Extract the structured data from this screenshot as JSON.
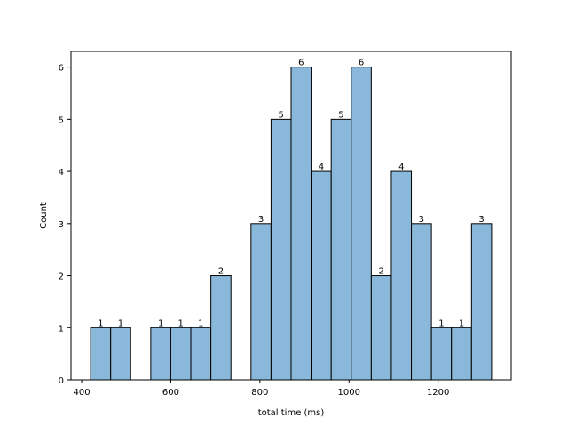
{
  "chart_data": {
    "type": "bar",
    "title": "",
    "xlabel": "total time (ms)",
    "ylabel": "Count",
    "bin_width": 45,
    "bin_edges": [
      420,
      465,
      510,
      555,
      600,
      645,
      690,
      735,
      780,
      825,
      870,
      915,
      960,
      1005,
      1050,
      1095,
      1140,
      1185,
      1230,
      1275,
      1320
    ],
    "values": [
      1,
      1,
      0,
      1,
      1,
      1,
      2,
      0,
      3,
      5,
      6,
      4,
      5,
      6,
      2,
      4,
      3,
      1,
      1,
      3
    ],
    "data_labels": [
      "1",
      "1",
      "",
      "1",
      "1",
      "1",
      "2",
      "",
      "3",
      "5",
      "6",
      "4",
      "5",
      "6",
      "2",
      "4",
      "3",
      "1",
      "1",
      "3"
    ],
    "xlim": [
      376,
      1364
    ],
    "ylim": [
      0,
      6.3
    ],
    "x_ticks": [
      400,
      600,
      800,
      1000,
      1200
    ],
    "y_ticks": [
      0,
      1,
      2,
      3,
      4,
      5,
      6
    ],
    "bar_color": "#8ab8da",
    "edge_color": "#000000",
    "grid": false,
    "legend": "none"
  }
}
